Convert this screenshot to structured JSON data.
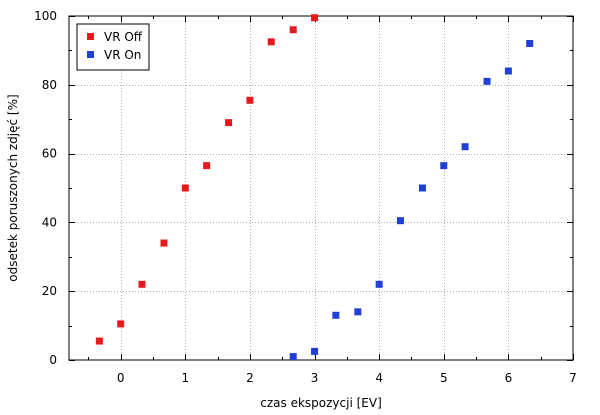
{
  "chart_data": {
    "type": "scatter",
    "xlabel": "czas ekspozycji [EV]",
    "ylabel": "odsetek poruszonych zdjęć [%]",
    "xlim": [
      -0.8,
      7
    ],
    "ylim": [
      0,
      100
    ],
    "xticks": [
      0,
      1,
      2,
      3,
      4,
      5,
      6,
      7
    ],
    "yticks": [
      0,
      20,
      40,
      60,
      80,
      100
    ],
    "grid": true,
    "legend_position": "top-left",
    "series": [
      {
        "name": "VR Off",
        "color": "#e41a1c",
        "x": [
          -0.33,
          0,
          0.33,
          0.67,
          1,
          1.33,
          1.67,
          2,
          2.33,
          2.67,
          3
        ],
        "y": [
          5.5,
          10.5,
          22,
          34,
          50,
          56.5,
          69,
          75.5,
          92.5,
          96,
          99.5
        ]
      },
      {
        "name": "VR On",
        "color": "#1f3fd6",
        "x": [
          2.67,
          3,
          3.33,
          3.67,
          4,
          4.33,
          4.67,
          5,
          5.33,
          5.67,
          6,
          6.33
        ],
        "y": [
          1,
          2.5,
          13,
          14,
          22,
          40.5,
          50,
          56.5,
          62,
          81,
          84,
          92
        ]
      }
    ]
  }
}
